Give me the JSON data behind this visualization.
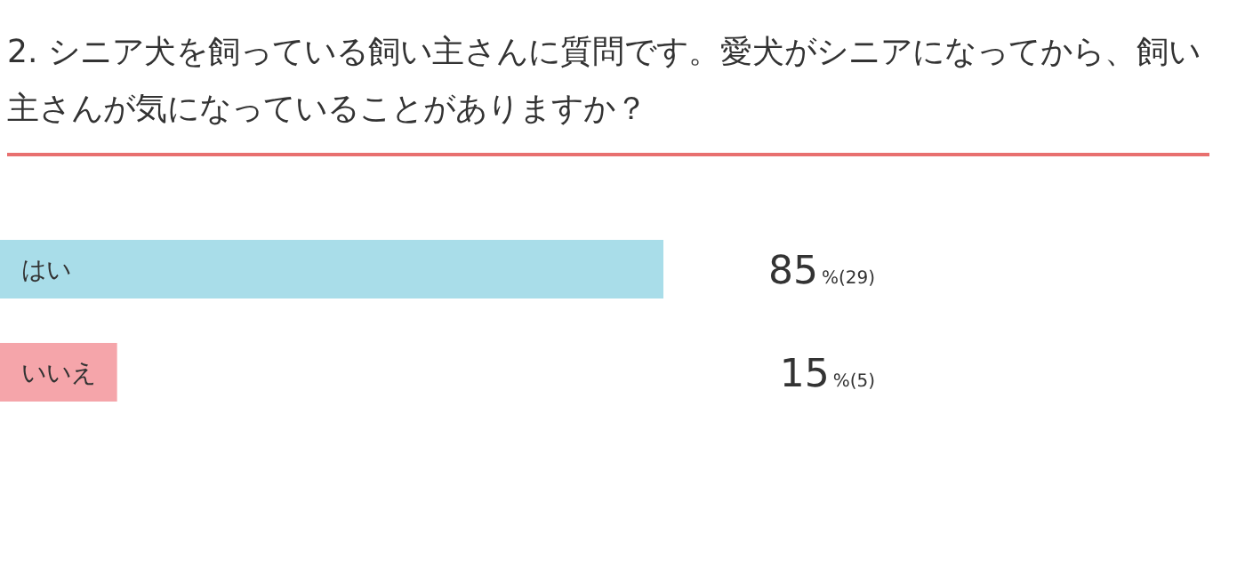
{
  "chart_data": {
    "type": "bar",
    "orientation": "horizontal",
    "title": "2. シニア犬を飼っている飼い主さんに質問です。愛犬がシニアになってから、飼い主さんが気になっていることがありますか？",
    "categories": [
      "はい",
      "いいえ"
    ],
    "values": [
      85,
      15
    ],
    "colors": [
      "#a9dde9",
      "#f5a5aa"
    ],
    "value_labels": [
      "85%(29)",
      "15%(5)"
    ]
  }
}
